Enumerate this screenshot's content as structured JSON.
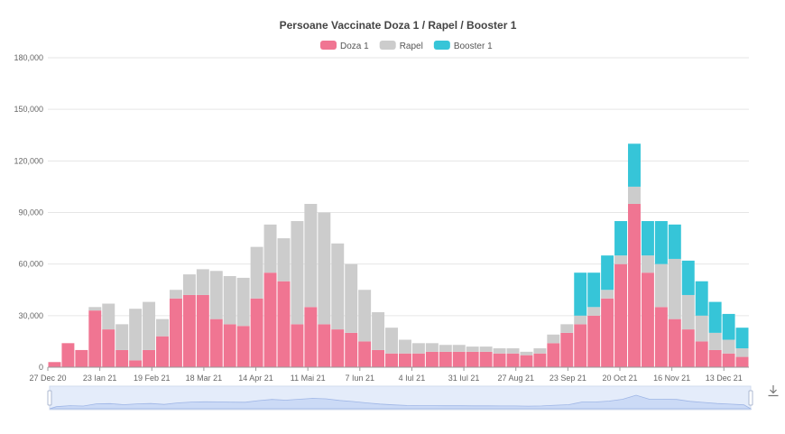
{
  "chart_data": {
    "type": "bar",
    "stacked": true,
    "title": "Persoane Vaccinate Doza 1 / Rapel / Booster 1",
    "granularity_note": "weekly daily-average values, weeks starting 27 Dec 20",
    "x_tick_labels": [
      "27 Dec 20",
      "23 Ian 21",
      "19 Feb 21",
      "18 Mar 21",
      "14 Apr 21",
      "11 Mai 21",
      "7 Iun 21",
      "4 Iul 21",
      "31 Iul 21",
      "27 Aug 21",
      "23 Sep 21",
      "20 Oct 21",
      "16 Nov 21",
      "13 Dec 21"
    ],
    "x_tick_step_days": 27,
    "y_tick_labels": [
      "0",
      "30,000",
      "60,000",
      "90,000",
      "120,000",
      "150,000",
      "180,000"
    ],
    "ylim": [
      0,
      180000
    ],
    "grid": true,
    "legend_position": "top-center",
    "series": [
      {
        "name": "Doza 1",
        "color": "#f07592",
        "values": [
          3000,
          14000,
          10000,
          33000,
          22000,
          10000,
          4000,
          10000,
          18000,
          40000,
          42000,
          42000,
          28000,
          25000,
          24000,
          40000,
          55000,
          50000,
          25000,
          35000,
          25000,
          22000,
          20000,
          15000,
          10000,
          8000,
          8000,
          8000,
          9000,
          9000,
          9000,
          9000,
          9000,
          8000,
          8000,
          7000,
          8000,
          14000,
          20000,
          25000,
          30000,
          40000,
          60000,
          95000,
          55000,
          35000,
          28000,
          22000,
          15000,
          10000,
          8000,
          6000
        ]
      },
      {
        "name": "Rapel",
        "color": "#cccccc",
        "values": [
          0,
          0,
          0,
          2000,
          15000,
          15000,
          30000,
          28000,
          10000,
          5000,
          12000,
          15000,
          28000,
          28000,
          28000,
          30000,
          28000,
          25000,
          60000,
          60000,
          65000,
          50000,
          40000,
          30000,
          22000,
          15000,
          8000,
          6000,
          5000,
          4000,
          4000,
          3000,
          3000,
          3000,
          3000,
          2000,
          3000,
          5000,
          5000,
          5000,
          5000,
          5000,
          5000,
          10000,
          10000,
          25000,
          35000,
          20000,
          15000,
          10000,
          8000,
          5000
        ]
      },
      {
        "name": "Booster 1",
        "color": "#36c5d8",
        "values": [
          0,
          0,
          0,
          0,
          0,
          0,
          0,
          0,
          0,
          0,
          0,
          0,
          0,
          0,
          0,
          0,
          0,
          0,
          0,
          0,
          0,
          0,
          0,
          0,
          0,
          0,
          0,
          0,
          0,
          0,
          0,
          0,
          0,
          0,
          0,
          0,
          0,
          0,
          0,
          25000,
          20000,
          20000,
          20000,
          25000,
          20000,
          25000,
          20000,
          20000,
          20000,
          18000,
          15000,
          12000
        ]
      }
    ]
  },
  "toolbar": {
    "download_icon": "download-icon"
  }
}
